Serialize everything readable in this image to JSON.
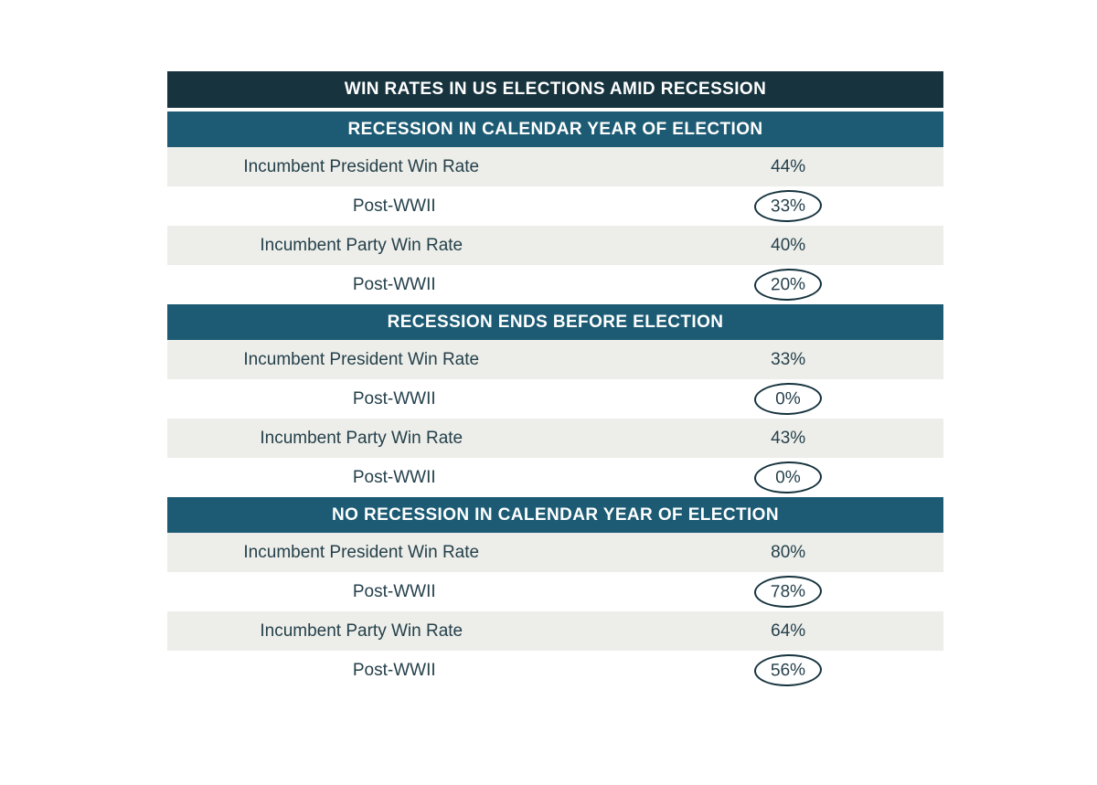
{
  "title": "WIN RATES IN US ELECTIONS AMID RECESSION",
  "colors": {
    "title_bar_bg": "#16333e",
    "section_header_bg": "#1c5b73",
    "shaded_row_bg": "#edeee9",
    "text": "#25404b",
    "circle_stroke": "#16333e",
    "header_text": "#ffffff"
  },
  "chart_data": {
    "type": "table",
    "title": "WIN RATES IN US ELECTIONS AMID RECESSION",
    "sections": [
      {
        "header": "RECESSION IN CALENDAR YEAR OF ELECTION",
        "rows": [
          {
            "label": "Incumbent President Win Rate",
            "value": "44%",
            "circled": false
          },
          {
            "label": "Post-WWII",
            "value": "33%",
            "circled": true
          },
          {
            "label": "Incumbent Party Win Rate",
            "value": "40%",
            "circled": false
          },
          {
            "label": "Post-WWII",
            "value": "20%",
            "circled": true
          }
        ]
      },
      {
        "header": "RECESSION ENDS BEFORE ELECTION",
        "rows": [
          {
            "label": "Incumbent President Win Rate",
            "value": "33%",
            "circled": false
          },
          {
            "label": "Post-WWII",
            "value": "0%",
            "circled": true
          },
          {
            "label": "Incumbent Party Win Rate",
            "value": "43%",
            "circled": false
          },
          {
            "label": "Post-WWII",
            "value": "0%",
            "circled": true
          }
        ]
      },
      {
        "header": "NO RECESSION IN CALENDAR YEAR OF ELECTION",
        "rows": [
          {
            "label": "Incumbent President Win Rate",
            "value": "80%",
            "circled": false
          },
          {
            "label": "Post-WWII",
            "value": "78%",
            "circled": true
          },
          {
            "label": "Incumbent Party Win Rate",
            "value": "64%",
            "circled": false
          },
          {
            "label": "Post-WWII",
            "value": "56%",
            "circled": true
          }
        ]
      }
    ]
  }
}
